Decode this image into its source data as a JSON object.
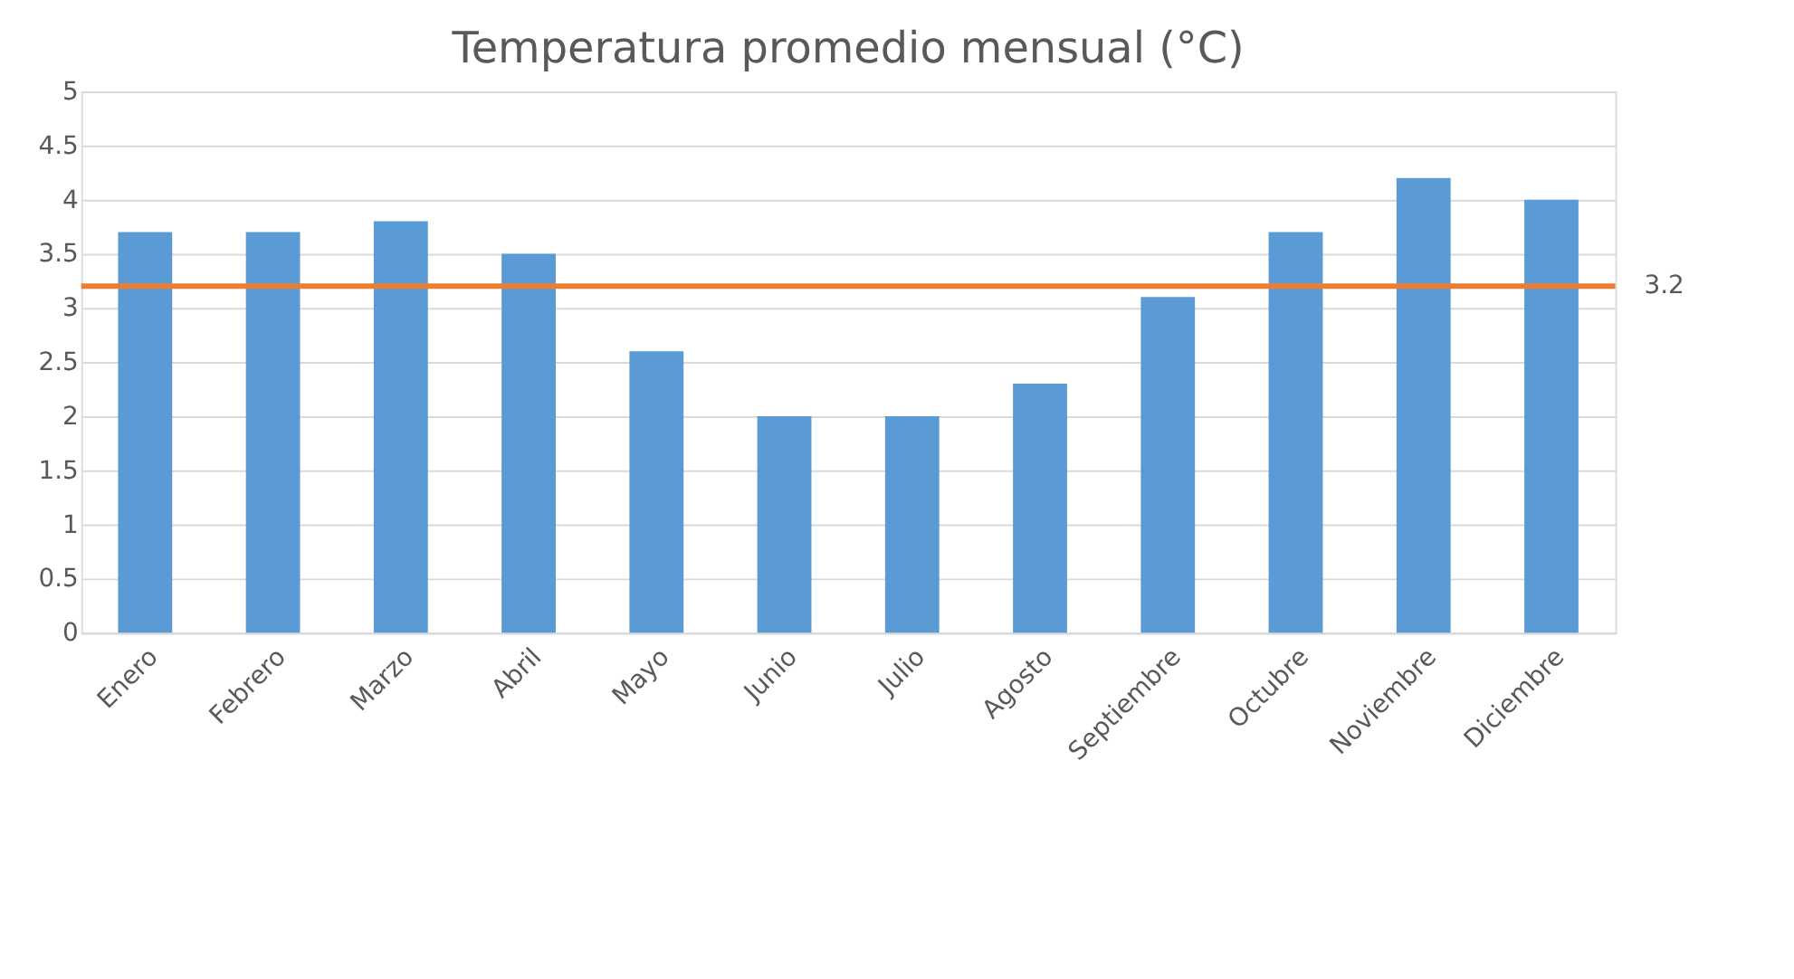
{
  "chart_data": {
    "type": "bar",
    "title": "Temperatura promedio mensual (°C)",
    "categories": [
      "Enero",
      "Febrero",
      "Marzo",
      "Abril",
      "Mayo",
      "Junio",
      "Julio",
      "Agosto",
      "Septiembre",
      "Octubre",
      "Noviembre",
      "Diciembre"
    ],
    "series": [
      {
        "color": "#5b9bd5",
        "values": [
          3.7,
          3.7,
          3.8,
          3.5,
          2.6,
          2.0,
          2.0,
          2.3,
          3.1,
          3.7,
          4.2,
          4.0
        ]
      }
    ],
    "ylim": [
      0,
      5
    ],
    "yticks": [
      0,
      0.5,
      1,
      1.5,
      2,
      2.5,
      3,
      3.5,
      4,
      4.5,
      5
    ],
    "grid": "y",
    "ref_lines": [
      {
        "axis": "y",
        "value": 3.2,
        "label": "3.2",
        "color": "#ed7d31",
        "line_style": "solid"
      }
    ]
  }
}
